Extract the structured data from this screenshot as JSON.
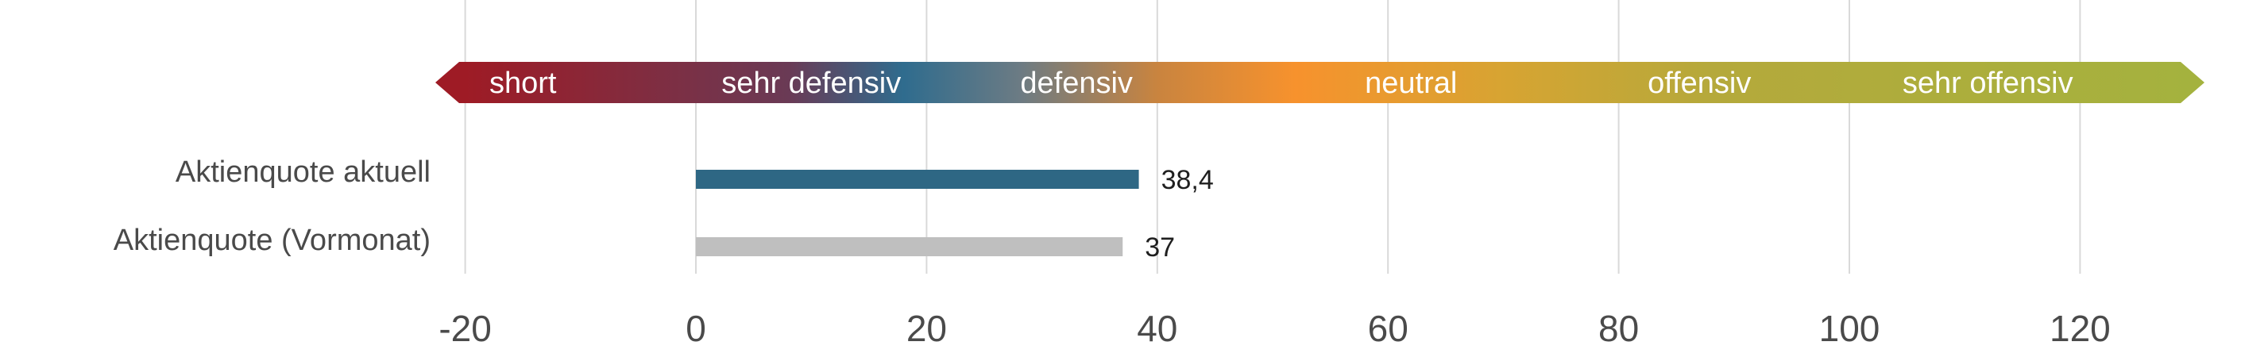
{
  "chart_data": {
    "type": "bar",
    "orientation": "horizontal",
    "title": "",
    "xlabel": "",
    "ylabel": "",
    "xlim": [
      -20,
      130
    ],
    "x_ticks": [
      -20,
      0,
      20,
      40,
      60,
      80,
      100,
      120
    ],
    "x_tick_labels": [
      "-20",
      "0",
      "20",
      "40",
      "60",
      "80",
      "100",
      "120"
    ],
    "grid": "vertical",
    "categories": [
      "Aktienquote aktuell",
      "Aktienquote (Vormonat)"
    ],
    "values": [
      38.4,
      37
    ],
    "value_labels": [
      "38,4",
      "37"
    ],
    "bar_colors": [
      "#2e6784",
      "#bfbfbf"
    ],
    "scale_band": {
      "labels": [
        {
          "text": "short",
          "x": -15
        },
        {
          "text": "sehr defensiv",
          "x": 10
        },
        {
          "text": "defensiv",
          "x": 33
        },
        {
          "text": "neutral",
          "x": 62
        },
        {
          "text": "offensiv",
          "x": 87
        },
        {
          "text": "sehr offensiv",
          "x": 112
        }
      ],
      "gradient_colors": [
        {
          "at": -20,
          "color": "#9e1b25"
        },
        {
          "at": 8,
          "color": "#6a3a55"
        },
        {
          "at": 18,
          "color": "#2f6c8e"
        },
        {
          "at": 28,
          "color": "#6b7b84"
        },
        {
          "at": 40,
          "color": "#c9843f"
        },
        {
          "at": 52,
          "color": "#f7922d"
        },
        {
          "at": 70,
          "color": "#d7a432"
        },
        {
          "at": 88,
          "color": "#b5a93b"
        },
        {
          "at": 130,
          "color": "#a4b23e"
        }
      ]
    }
  }
}
